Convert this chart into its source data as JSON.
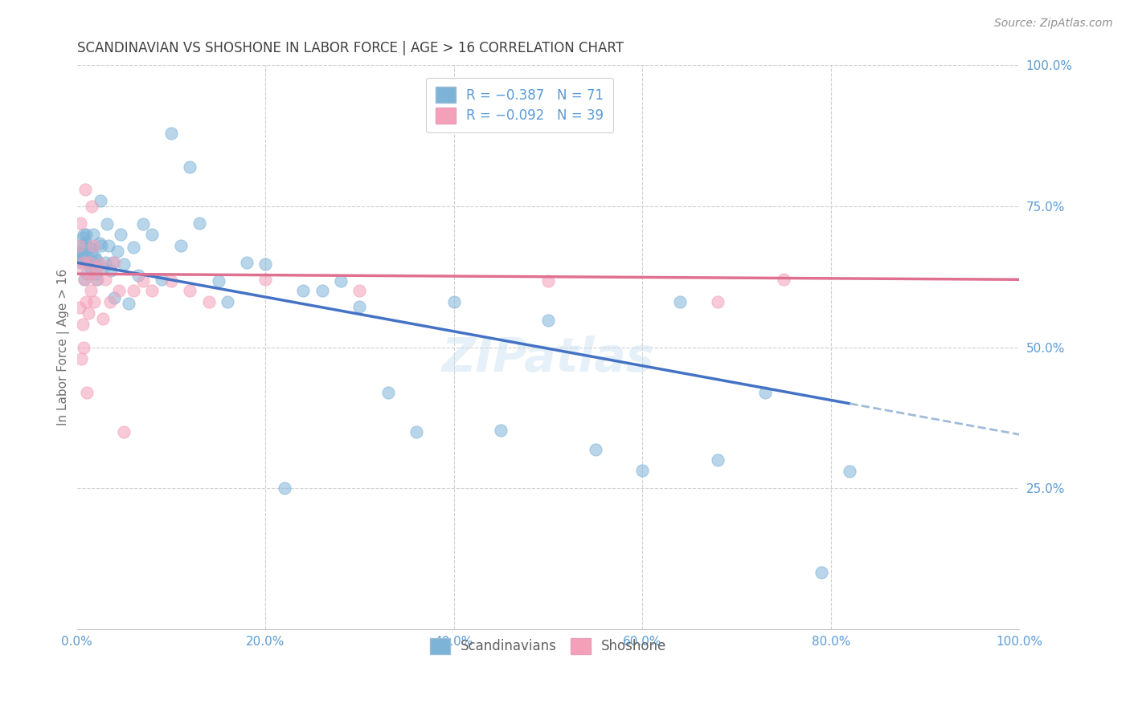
{
  "title": "SCANDINAVIAN VS SHOSHONE IN LABOR FORCE | AGE > 16 CORRELATION CHART",
  "source": "Source: ZipAtlas.com",
  "ylabel": "In Labor Force | Age > 16",
  "xlim": [
    0,
    1
  ],
  "ylim": [
    0,
    1
  ],
  "watermark": "ZIPatlas",
  "title_color": "#404040",
  "axis_color": "#5b9bd5",
  "grid_color": "#c8c8c8",
  "blue_scatter_color": "#7eb3d8",
  "pink_scatter_color": "#f4a0b8",
  "blue_line_color": "#4472c4",
  "pink_line_color": "#e07090",
  "blue_line_dashed_color": "#a0bcd8",
  "sc_x": [
    0.0,
    0.001,
    0.003,
    0.003,
    0.004,
    0.005,
    0.005,
    0.006,
    0.007,
    0.007,
    0.008,
    0.009,
    0.01,
    0.01,
    0.011,
    0.012,
    0.013,
    0.013,
    0.014,
    0.015,
    0.016,
    0.017,
    0.018,
    0.019,
    0.02,
    0.021,
    0.022,
    0.024,
    0.025,
    0.026,
    0.028,
    0.03,
    0.032,
    0.034,
    0.036,
    0.038,
    0.04,
    0.043,
    0.046,
    0.05,
    0.055,
    0.06,
    0.065,
    0.07,
    0.08,
    0.09,
    0.1,
    0.11,
    0.12,
    0.13,
    0.15,
    0.16,
    0.18,
    0.2,
    0.22,
    0.24,
    0.26,
    0.28,
    0.3,
    0.33,
    0.36,
    0.4,
    0.45,
    0.5,
    0.55,
    0.6,
    0.64,
    0.68,
    0.73,
    0.79,
    0.82
  ],
  "sc_y": [
    0.66,
    0.67,
    0.655,
    0.668,
    0.65,
    0.664,
    0.68,
    0.695,
    0.66,
    0.7,
    0.62,
    0.685,
    0.66,
    0.7,
    0.63,
    0.65,
    0.678,
    0.65,
    0.678,
    0.64,
    0.668,
    0.7,
    0.65,
    0.66,
    0.63,
    0.655,
    0.62,
    0.685,
    0.76,
    0.68,
    0.64,
    0.65,
    0.718,
    0.68,
    0.636,
    0.65,
    0.588,
    0.67,
    0.7,
    0.648,
    0.578,
    0.678,
    0.628,
    0.718,
    0.7,
    0.62,
    0.88,
    0.68,
    0.82,
    0.72,
    0.618,
    0.58,
    0.65,
    0.648,
    0.25,
    0.6,
    0.6,
    0.618,
    0.572,
    0.42,
    0.35,
    0.58,
    0.352,
    0.548,
    0.318,
    0.282,
    0.58,
    0.3,
    0.42,
    0.1,
    0.28
  ],
  "sh_x": [
    0.0,
    0.002,
    0.003,
    0.004,
    0.005,
    0.006,
    0.007,
    0.007,
    0.008,
    0.009,
    0.01,
    0.011,
    0.012,
    0.013,
    0.014,
    0.015,
    0.016,
    0.017,
    0.018,
    0.02,
    0.022,
    0.025,
    0.028,
    0.03,
    0.035,
    0.04,
    0.045,
    0.05,
    0.06,
    0.07,
    0.08,
    0.1,
    0.12,
    0.14,
    0.2,
    0.3,
    0.5,
    0.68,
    0.75
  ],
  "sh_y": [
    0.64,
    0.68,
    0.57,
    0.72,
    0.48,
    0.54,
    0.65,
    0.5,
    0.62,
    0.78,
    0.58,
    0.42,
    0.56,
    0.65,
    0.63,
    0.6,
    0.75,
    0.68,
    0.58,
    0.62,
    0.64,
    0.648,
    0.55,
    0.62,
    0.58,
    0.65,
    0.6,
    0.35,
    0.6,
    0.618,
    0.6,
    0.618,
    0.6,
    0.58,
    0.62,
    0.6,
    0.618,
    0.58,
    0.62
  ],
  "blue_line_x0": 0.0,
  "blue_line_x1": 0.82,
  "blue_line_x2": 1.0,
  "blue_line_y_intercept": 0.648,
  "blue_line_slope": -0.305,
  "pink_line_y_intercept": 0.63,
  "pink_line_slope": -0.03
}
